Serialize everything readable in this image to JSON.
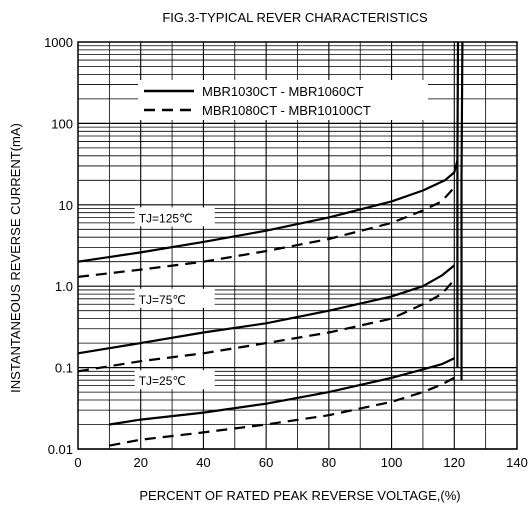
{
  "chart_data": {
    "type": "line",
    "title": "FIG.3-TYPICAL REVER CHARACTERISTICS",
    "xlabel": "PERCENT OF RATED PEAK REVERSE VOLTAGE,(%)",
    "ylabel": "INSTANTANEOUS REVERSE CURRENT(mA)",
    "xlim": [
      0,
      140
    ],
    "ylim": [
      0.01,
      1000
    ],
    "y_scale": "log",
    "grid": true,
    "x_ticks": [
      0,
      20,
      40,
      60,
      80,
      100,
      120,
      140
    ],
    "x_tick_labels": [
      "0",
      "20",
      "40",
      "60",
      "80",
      "100",
      "120",
      "140"
    ],
    "y_ticks": [
      0.01,
      0.1,
      1,
      10,
      100,
      1000
    ],
    "y_tick_labels": [
      "0.01",
      "0.1",
      "1.0",
      "10",
      "100",
      "1000"
    ],
    "legend": {
      "placement": "top-center",
      "entries": [
        {
          "label": "MBR1030CT - MBR1060CT",
          "style": "solid"
        },
        {
          "label": "MBR1080CT - MBR10100CT",
          "style": "dashed"
        }
      ]
    },
    "annotations": [
      {
        "text": "TJ=125℃",
        "x": 20,
        "y": 7
      },
      {
        "text": "TJ=75℃",
        "x": 20,
        "y": 0.7
      },
      {
        "text": "TJ=25℃",
        "x": 20,
        "y": 0.07
      }
    ],
    "series": [
      {
        "style": "solid",
        "condition": "TJ=125℃",
        "x": [
          0,
          20,
          40,
          60,
          80,
          100,
          110,
          117,
          120,
          121
        ],
        "y": [
          2,
          2.6,
          3.5,
          4.8,
          7,
          11,
          15,
          20,
          25,
          35
        ]
      },
      {
        "style": "dashed",
        "condition": "TJ=125℃",
        "x": [
          0,
          20,
          40,
          60,
          80,
          100,
          110,
          116,
          121
        ],
        "y": [
          1.3,
          1.6,
          2,
          2.7,
          3.8,
          6,
          8.5,
          11,
          18
        ]
      },
      {
        "style": "solid",
        "condition": "TJ=75℃",
        "x": [
          0,
          20,
          40,
          60,
          80,
          100,
          110,
          116,
          120
        ],
        "y": [
          0.15,
          0.2,
          0.27,
          0.35,
          0.5,
          0.75,
          1,
          1.35,
          1.8
        ]
      },
      {
        "style": "dashed",
        "condition": "TJ=75℃",
        "x": [
          0,
          20,
          40,
          60,
          80,
          100,
          110,
          116,
          120
        ],
        "y": [
          0.09,
          0.12,
          0.15,
          0.2,
          0.27,
          0.4,
          0.6,
          0.8,
          1.2
        ]
      },
      {
        "style": "solid",
        "condition": "TJ=25℃",
        "x": [
          10,
          20,
          40,
          60,
          80,
          100,
          110,
          116,
          120
        ],
        "y": [
          0.02,
          0.023,
          0.028,
          0.036,
          0.05,
          0.075,
          0.095,
          0.11,
          0.13
        ]
      },
      {
        "style": "dashed",
        "condition": "TJ=25℃",
        "x": [
          10,
          20,
          40,
          60,
          80,
          100,
          110,
          116,
          120
        ],
        "y": [
          0.011,
          0.013,
          0.016,
          0.02,
          0.026,
          0.038,
          0.05,
          0.062,
          0.075
        ]
      },
      {
        "style": "solid",
        "condition": "breakdown",
        "x": [
          121,
          121,
          121.2
        ],
        "y": [
          0.1,
          35,
          1000
        ]
      },
      {
        "style": "solid",
        "condition": "breakdown",
        "x": [
          122.3,
          122.3,
          122.6
        ],
        "y": [
          0.07,
          20,
          1000
        ]
      }
    ]
  }
}
